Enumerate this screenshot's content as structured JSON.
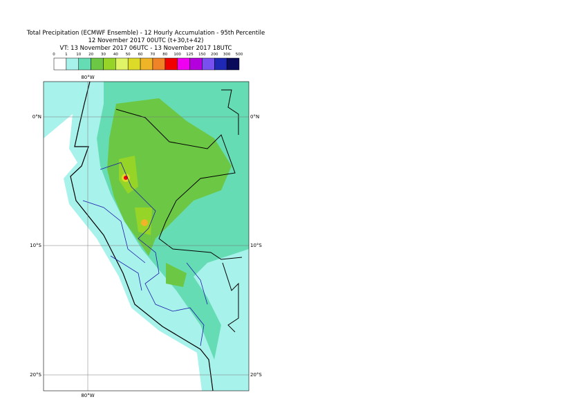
{
  "header": {
    "title_lines": [
      "Total Precipitation (ECMWF Ensemble) - 12 Hourly Accumulation - 95th Percentile",
      "12 November 2017 00UTC (t+30,t+42)",
      "VT: 13 November 2017 06UTC - 13 November 2017 18UTC"
    ]
  },
  "legend": {
    "labels": [
      "0",
      "1",
      "10",
      "20",
      "30",
      "40",
      "50",
      "60",
      "70",
      "80",
      "100",
      "125",
      "150",
      "200",
      "300",
      "500"
    ],
    "colors": [
      "#ffffff",
      "#a8f2ec",
      "#66dcb4",
      "#6cc844",
      "#96d428",
      "#e0f468",
      "#dcdc28",
      "#f0b428",
      "#f08228",
      "#f00000",
      "#f000f0",
      "#b400dc",
      "#7850f0",
      "#1e28b4",
      "#0a0a5a"
    ]
  },
  "map": {
    "lat_labels": [
      "0°N",
      "10°S",
      "20°S"
    ],
    "lon_labels": [
      "80°W"
    ]
  }
}
